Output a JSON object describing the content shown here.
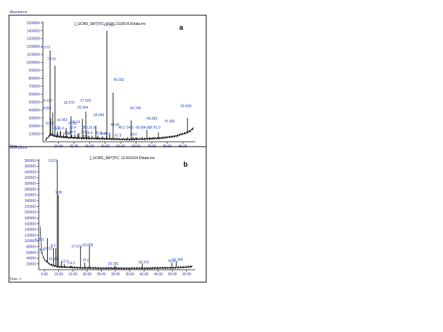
{
  "chart_data": [
    {
      "type": "line",
      "panel_letter": "a",
      "title": "[_GCMS_SMT]TIC: GC01.2110514.D\\data.ms",
      "ylabel": "Abundance",
      "xlabel": "Time-->",
      "ylim": [
        0,
        1500000
      ],
      "xlim": [
        0,
        98
      ],
      "y_ticks": [
        100000,
        200000,
        300000,
        400000,
        500000,
        600000,
        700000,
        800000,
        900000,
        1000000,
        1100000,
        1200000,
        1300000,
        1400000,
        1500000
      ],
      "x_ticks": [
        10,
        20,
        30,
        40,
        50,
        60,
        70,
        80,
        90
      ],
      "x_tick_labels": [
        "10.00",
        "20.00",
        "30.00",
        "40.00",
        "50.00",
        "60.00",
        "70.00",
        "80.00",
        "90.00"
      ],
      "baseline": [
        [
          1.5,
          20000
        ],
        [
          5,
          90000
        ],
        [
          8,
          70000
        ],
        [
          15,
          55000
        ],
        [
          25,
          45000
        ],
        [
          35,
          40000
        ],
        [
          45,
          35000
        ],
        [
          55,
          30000
        ],
        [
          65,
          35000
        ],
        [
          75,
          45000
        ],
        [
          85,
          70000
        ],
        [
          92,
          110000
        ],
        [
          95,
          140000
        ],
        [
          97,
          175000
        ]
      ],
      "peaks": [
        {
          "rt": 4.573,
          "label": "4.573",
          "abundance": 1150000
        },
        {
          "rt": 4.851,
          "label": "4.851",
          "abundance": 300000
        },
        {
          "rt": 6.222,
          "label": "6.222",
          "abundance": 370000
        },
        {
          "rt": 7.71,
          "label": "7.710",
          "abundance": 960000
        },
        {
          "rt": 8.6,
          "label": "8.6",
          "abundance": 60000
        },
        {
          "rt": 9.4,
          "label": "9.4",
          "abundance": 130000
        },
        {
          "rt": 11.17,
          "label": "11.17",
          "abundance": 120000
        },
        {
          "rt": 11.4,
          "label": "11.4",
          "abundance": 140000
        },
        {
          "rt": 13.2,
          "label": "13.2",
          "abundance": 90000
        },
        {
          "rt": 14.5,
          "label": "14.5",
          "abundance": 70000
        },
        {
          "rt": 14.953,
          "label": "14.953",
          "abundance": 175000
        },
        {
          "rt": 15.6,
          "label": "15.6",
          "abundance": 80000
        },
        {
          "rt": 18.076,
          "label": "18.076",
          "abundance": 320000
        },
        {
          "rt": 18.6,
          "label": "18.6",
          "abundance": 90000
        },
        {
          "rt": 20.55,
          "label": "20.55",
          "abundance": 95000
        },
        {
          "rt": 22.4,
          "label": "22.4",
          "abundance": 100000
        },
        {
          "rt": 23.14,
          "label": "23.14",
          "abundance": 110000
        },
        {
          "rt": 25.464,
          "label": "25.464",
          "abundance": 290000
        },
        {
          "rt": 26.2,
          "label": "26.2",
          "abundance": 90000
        },
        {
          "rt": 27.623,
          "label": "27.623",
          "abundance": 380000
        },
        {
          "rt": 28.1,
          "label": "28.1",
          "abundance": 90000
        },
        {
          "rt": 29.4,
          "label": "29.4",
          "abundance": 80000
        },
        {
          "rt": 31.6,
          "label": "31.6",
          "abundance": 80000
        },
        {
          "rt": 34.049,
          "label": "34.049",
          "abundance": 200000
        },
        {
          "rt": 35.3,
          "label": "35.3",
          "abundance": 80000
        },
        {
          "rt": 38.4,
          "label": "38.4",
          "abundance": 70000
        },
        {
          "rt": 40.9,
          "label": "40.9",
          "abundance": 70000
        },
        {
          "rt": 41.153,
          "label": "41.153",
          "abundance": 1400000
        },
        {
          "rt": 43.06,
          "label": "43.06",
          "abundance": 90000
        },
        {
          "rt": 45.092,
          "label": "45.092",
          "abundance": 620000
        },
        {
          "rt": 46.2,
          "label": "46.2",
          "abundance": 40000
        },
        {
          "rt": 47.9,
          "label": "47.9",
          "abundance": 50000
        },
        {
          "rt": 54.5,
          "label": "54.5",
          "abundance": 60000
        },
        {
          "rt": 56.748,
          "label": "56.748",
          "abundance": 270000
        },
        {
          "rt": 58.0,
          "label": "58.0",
          "abundance": 60000
        },
        {
          "rt": 60.0,
          "label": "60.0",
          "abundance": 60000
        },
        {
          "rt": 64.0,
          "label": "64.0",
          "abundance": 60000
        },
        {
          "rt": 66.883,
          "label": "66.883",
          "abundance": 150000
        },
        {
          "rt": 68.7,
          "label": "68.7",
          "abundance": 60000
        },
        {
          "rt": 71.0,
          "label": "71.0",
          "abundance": 60000
        },
        {
          "rt": 74.309,
          "label": "74.309",
          "abundance": 120000
        },
        {
          "rt": 93.034,
          "label": "93.034",
          "abundance": 300000
        }
      ]
    },
    {
      "type": "line",
      "panel_letter": "b",
      "title": "[_GCMS_SMT]TIC: 13.D02014.D\\data.ms",
      "ylabel": "Abundance",
      "xlabel": "Time-->",
      "ylim": [
        0,
        380000
      ],
      "xlim": [
        3,
        58
      ],
      "y_ticks": [
        20000,
        40000,
        60000,
        80000,
        100000,
        120000,
        140000,
        160000,
        180000,
        200000,
        220000,
        240000,
        260000,
        280000,
        300000,
        320000,
        340000,
        360000,
        380000
      ],
      "x_ticks": [
        5,
        10,
        15,
        20,
        25,
        30,
        35,
        40,
        45,
        50,
        55
      ],
      "x_tick_labels": [
        "5.00",
        "10.00",
        "15.00",
        "20.00",
        "25.00",
        "30.00",
        "35.00",
        "40.00",
        "45.00",
        "50.00",
        "55.00"
      ],
      "baseline": [
        [
          3.5,
          150000
        ],
        [
          4,
          60000
        ],
        [
          5,
          35000
        ],
        [
          7,
          18000
        ],
        [
          10,
          10000
        ],
        [
          15,
          8000
        ],
        [
          20,
          6000
        ],
        [
          30,
          5000
        ],
        [
          40,
          5000
        ],
        [
          50,
          7000
        ],
        [
          55,
          9000
        ],
        [
          57,
          12000
        ]
      ],
      "peaks": [
        {
          "rt": 4.2,
          "label": "4.2",
          "abundance": 60000
        },
        {
          "rt": 6.021,
          "label": "6.021",
          "abundance": 110000
        },
        {
          "rt": 8.2,
          "label": "8.2",
          "abundance": 75000
        },
        {
          "rt": 9.013,
          "label": "9.013",
          "abundance": 75000
        },
        {
          "rt": 9.523,
          "label": "9.523",
          "abundance": 380000
        },
        {
          "rt": 9.85,
          "label": "9.85",
          "abundance": 260000
        },
        {
          "rt": 10.956,
          "label": "10.956",
          "abundance": 30000
        },
        {
          "rt": 12.0,
          "label": "12.0",
          "abundance": 20000
        },
        {
          "rt": 14.3,
          "label": "14.3",
          "abundance": 15000
        },
        {
          "rt": 17.674,
          "label": "17.674",
          "abundance": 80000
        },
        {
          "rt": 19.2,
          "label": "19.2",
          "abundance": 25000
        },
        {
          "rt": 20.808,
          "label": "20.808",
          "abundance": 82000
        },
        {
          "rt": 29.781,
          "label": "29.781",
          "abundance": 15000
        },
        {
          "rt": 39.373,
          "label": "39.373",
          "abundance": 20000
        },
        {
          "rt": 49.8,
          "label": "49.8",
          "abundance": 25000
        },
        {
          "rt": 51.349,
          "label": "51.349",
          "abundance": 30000
        }
      ]
    }
  ]
}
